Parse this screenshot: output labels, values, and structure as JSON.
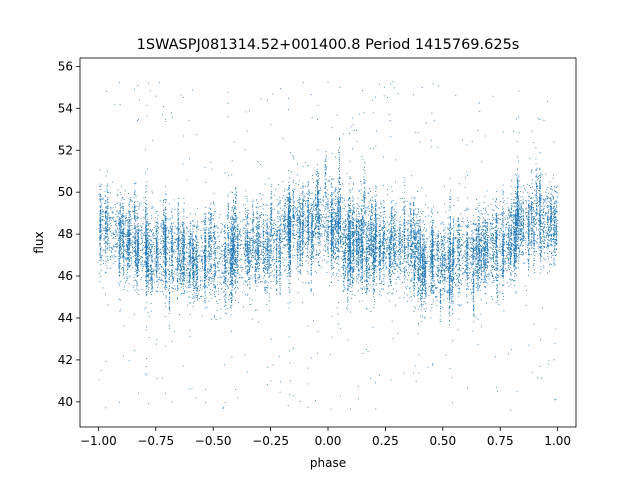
{
  "chart_data": {
    "type": "scatter",
    "title": "1SWASPJ081314.52+001400.8 Period 1415769.625s",
    "xlabel": "phase",
    "ylabel": "flux",
    "xlim": [
      -1.08,
      1.08
    ],
    "ylim": [
      38.8,
      56.4
    ],
    "xticks": [
      -1.0,
      -0.75,
      -0.5,
      -0.25,
      0.0,
      0.25,
      0.5,
      0.75,
      1.0
    ],
    "xtick_labels": [
      "−1.00",
      "−0.75",
      "−0.50",
      "−0.25",
      "0.00",
      "0.25",
      "0.50",
      "0.75",
      "1.00"
    ],
    "yticks": [
      40,
      42,
      44,
      46,
      48,
      50,
      52,
      54,
      56
    ],
    "ytick_labels": [
      "40",
      "42",
      "44",
      "46",
      "48",
      "50",
      "52",
      "54",
      "56"
    ],
    "grid": false,
    "point_color": "#1f77b4",
    "series": [
      {
        "point_count_approx": 18000,
        "phase_range": [
          -1.0,
          1.0
        ],
        "trend": [
          {
            "phase": -1.0,
            "flux": 48.6
          },
          {
            "phase": -0.9,
            "flux": 47.8
          },
          {
            "phase": -0.75,
            "flux": 47.5
          },
          {
            "phase": -0.6,
            "flux": 46.8
          },
          {
            "phase": -0.5,
            "flux": 46.6
          },
          {
            "phase": -0.4,
            "flux": 47.0
          },
          {
            "phase": -0.25,
            "flux": 47.5
          },
          {
            "phase": -0.15,
            "flux": 48.5
          },
          {
            "phase": 0.0,
            "flux": 48.6
          },
          {
            "phase": 0.1,
            "flux": 47.8
          },
          {
            "phase": 0.25,
            "flux": 47.5
          },
          {
            "phase": 0.4,
            "flux": 46.8
          },
          {
            "phase": 0.5,
            "flux": 46.6
          },
          {
            "phase": 0.6,
            "flux": 47.0
          },
          {
            "phase": 0.75,
            "flux": 47.5
          },
          {
            "phase": 0.85,
            "flux": 48.5
          },
          {
            "phase": 1.0,
            "flux": 48.6
          }
        ],
        "scatter_sigma": 1.0,
        "outlier_flux_range": [
          39.6,
          55.3
        ]
      }
    ]
  }
}
